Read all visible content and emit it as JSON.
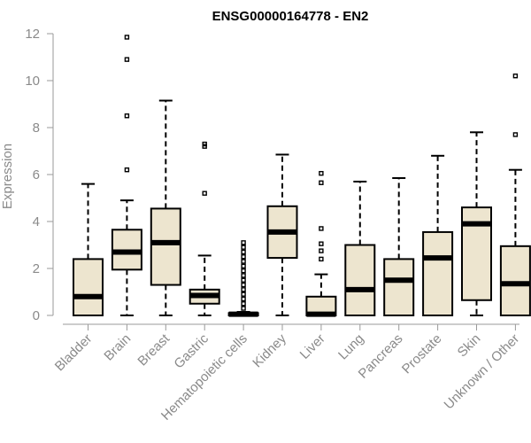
{
  "chart_data": {
    "type": "box",
    "title": "ENSG00000164778 - EN2",
    "xlabel": "",
    "ylabel": "Expression",
    "ylim": [
      0,
      12
    ],
    "yticks": [
      0,
      2,
      4,
      6,
      8,
      10,
      12
    ],
    "grid": false,
    "box_color": "#ede5cf",
    "categories": [
      "Bladder",
      "Brain",
      "Breast",
      "Gastric",
      "Hematopoietic cells",
      "Kidney",
      "Liver",
      "Lung",
      "Pancreas",
      "Prostate",
      "Skin",
      "Unknown / Other"
    ],
    "boxes": [
      {
        "category": "Bladder",
        "min": 0,
        "q1": 0,
        "median": 0.8,
        "q3": 2.4,
        "max": 5.6,
        "outliers": []
      },
      {
        "category": "Brain",
        "min": 0,
        "q1": 1.95,
        "median": 2.7,
        "q3": 3.65,
        "max": 4.9,
        "outliers": [
          6.2,
          8.5,
          10.9,
          11.85
        ]
      },
      {
        "category": "Breast",
        "min": 0,
        "q1": 1.3,
        "median": 3.1,
        "q3": 4.55,
        "max": 9.15,
        "outliers": []
      },
      {
        "category": "Gastric",
        "min": 0,
        "q1": 0.5,
        "median": 0.85,
        "q3": 1.1,
        "max": 2.55,
        "outliers": [
          5.2,
          7.2,
          7.3
        ]
      },
      {
        "category": "Hematopoietic cells",
        "min": 0,
        "q1": 0,
        "median": 0.05,
        "q3": 0.1,
        "max": 0.15,
        "outliers": [
          0.3,
          0.5,
          0.7,
          0.9,
          1.1,
          1.3,
          1.5,
          1.7,
          1.9,
          2.1,
          2.3,
          2.5,
          2.7,
          2.9,
          3.1
        ]
      },
      {
        "category": "Kidney",
        "min": 0,
        "q1": 2.45,
        "median": 3.55,
        "q3": 4.65,
        "max": 6.85,
        "outliers": []
      },
      {
        "category": "Liver",
        "min": 0,
        "q1": 0,
        "median": 0.05,
        "q3": 0.8,
        "max": 1.75,
        "outliers": [
          2.4,
          2.75,
          3.05,
          3.7,
          5.65,
          6.05
        ]
      },
      {
        "category": "Lung",
        "min": 0,
        "q1": 0,
        "median": 1.1,
        "q3": 3.0,
        "max": 5.7,
        "outliers": []
      },
      {
        "category": "Pancreas",
        "min": 0,
        "q1": 0,
        "median": 1.5,
        "q3": 2.4,
        "max": 5.85,
        "outliers": []
      },
      {
        "category": "Prostate",
        "min": 0,
        "q1": 0,
        "median": 2.45,
        "q3": 3.55,
        "max": 6.8,
        "outliers": []
      },
      {
        "category": "Skin",
        "min": 0,
        "q1": 0.65,
        "median": 3.9,
        "q3": 4.6,
        "max": 7.8,
        "outliers": []
      },
      {
        "category": "Unknown / Other",
        "min": 0,
        "q1": 0,
        "median": 1.35,
        "q3": 2.95,
        "max": 6.2,
        "outliers": [
          7.7,
          10.2
        ]
      }
    ]
  }
}
